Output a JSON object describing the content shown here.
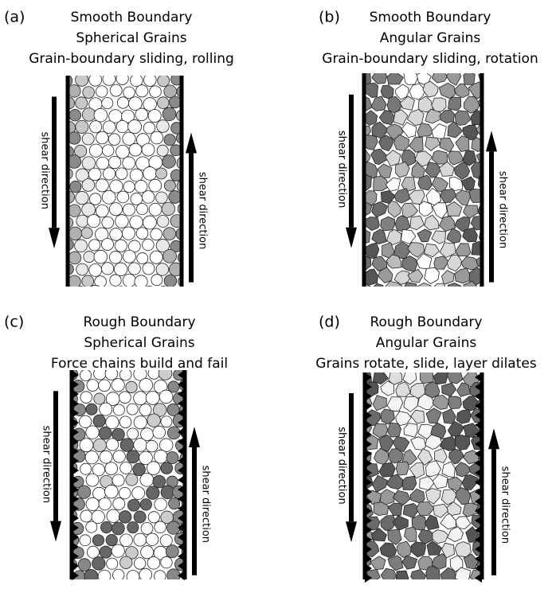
{
  "panels": [
    {
      "label": "(a)",
      "lines": [
        "Smooth Boundary",
        "Spherical Grains",
        "Grain-boundary sliding, rolling"
      ],
      "shear_left": "shear direction",
      "shear_right": "shear direction"
    },
    {
      "label": "(b)",
      "lines": [
        "Smooth Boundary",
        "Angular Grains",
        "Grain-boundary sliding, rotation"
      ],
      "shear_left": "shear direction",
      "shear_right": "shear direction"
    },
    {
      "label": "(c)",
      "lines": [
        "Rough Boundary",
        "Spherical Grains",
        "Force chains build and fail"
      ],
      "shear_left": "shear direction",
      "shear_right": "shear direction"
    },
    {
      "label": "(d)",
      "lines": [
        "Rough Boundary",
        "Angular Grains",
        "Grains rotate, slide, layer dilates"
      ],
      "shear_left": "shear direction",
      "shear_right": "shear direction"
    }
  ]
}
